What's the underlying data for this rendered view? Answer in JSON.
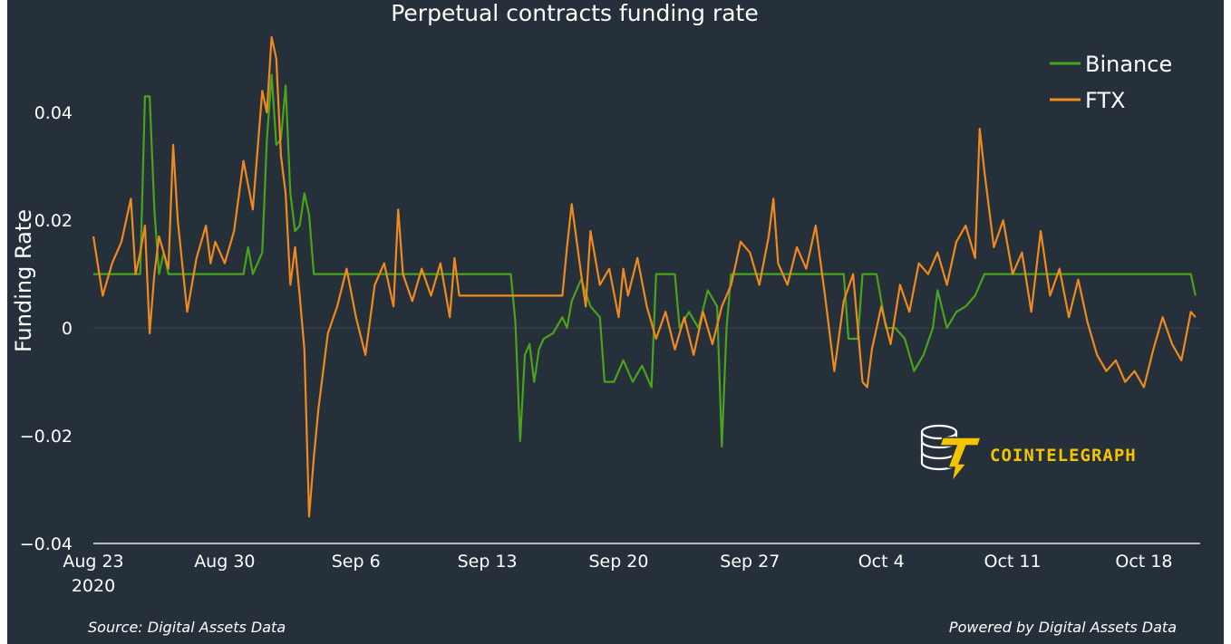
{
  "chart_data": {
    "type": "line",
    "title": "Perpetual contracts funding rate",
    "ylabel": "Funding Rate",
    "xlabel": "",
    "ylim": [
      -0.04,
      0.055
    ],
    "xlim": [
      "2020-08-23",
      "2020-10-21"
    ],
    "yticks": [
      {
        "value": 0.04,
        "label": "0.04"
      },
      {
        "value": 0.02,
        "label": "0.02"
      },
      {
        "value": 0,
        "label": "0"
      },
      {
        "value": -0.02,
        "label": "−0.02"
      },
      {
        "value": -0.04,
        "label": "−0.04"
      }
    ],
    "xticks": [
      {
        "value": "2020-08-23",
        "label": "Aug 23",
        "sublabel": "2020"
      },
      {
        "value": "2020-08-30",
        "label": "Aug 30"
      },
      {
        "value": "2020-09-06",
        "label": "Sep 6"
      },
      {
        "value": "2020-09-13",
        "label": "Sep 13"
      },
      {
        "value": "2020-09-20",
        "label": "Sep 20"
      },
      {
        "value": "2020-09-27",
        "label": "Sep 27"
      },
      {
        "value": "2020-10-04",
        "label": "Oct 4"
      },
      {
        "value": "2020-10-11",
        "label": "Oct 11"
      },
      {
        "value": "2020-10-18",
        "label": "Oct 18"
      }
    ],
    "legend_position": "top-right",
    "grid": "zero line only",
    "series": [
      {
        "name": "Binance",
        "color": "#4aa31c",
        "points": [
          [
            "2020-08-23 00:00",
            0.01
          ],
          [
            "2020-08-25 12:00",
            0.01
          ],
          [
            "2020-08-25 18:00",
            0.043
          ],
          [
            "2020-08-26 00:00",
            0.043
          ],
          [
            "2020-08-26 06:00",
            0.022
          ],
          [
            "2020-08-26 12:00",
            0.01
          ],
          [
            "2020-08-26 18:00",
            0.014
          ],
          [
            "2020-08-27 00:00",
            0.01
          ],
          [
            "2020-08-30 12:00",
            0.01
          ],
          [
            "2020-08-31 00:00",
            0.01
          ],
          [
            "2020-08-31 06:00",
            0.015
          ],
          [
            "2020-08-31 12:00",
            0.01
          ],
          [
            "2020-09-01 00:00",
            0.014
          ],
          [
            "2020-09-01 06:00",
            0.035
          ],
          [
            "2020-09-01 12:00",
            0.047
          ],
          [
            "2020-09-01 18:00",
            0.034
          ],
          [
            "2020-09-02 00:00",
            0.035
          ],
          [
            "2020-09-02 06:00",
            0.045
          ],
          [
            "2020-09-02 12:00",
            0.025
          ],
          [
            "2020-09-02 18:00",
            0.018
          ],
          [
            "2020-09-03 00:00",
            0.019
          ],
          [
            "2020-09-03 06:00",
            0.025
          ],
          [
            "2020-09-03 12:00",
            0.021
          ],
          [
            "2020-09-03 18:00",
            0.01
          ],
          [
            "2020-09-14 06:00",
            0.01
          ],
          [
            "2020-09-14 12:00",
            0.001
          ],
          [
            "2020-09-14 18:00",
            -0.021
          ],
          [
            "2020-09-15 00:00",
            -0.005
          ],
          [
            "2020-09-15 06:00",
            -0.003
          ],
          [
            "2020-09-15 12:00",
            -0.01
          ],
          [
            "2020-09-15 18:00",
            -0.004
          ],
          [
            "2020-09-16 00:00",
            -0.002
          ],
          [
            "2020-09-16 12:00",
            -0.001
          ],
          [
            "2020-09-17 00:00",
            0.002
          ],
          [
            "2020-09-17 06:00",
            0.0
          ],
          [
            "2020-09-17 12:00",
            0.005
          ],
          [
            "2020-09-18 00:00",
            0.009
          ],
          [
            "2020-09-18 12:00",
            0.004
          ],
          [
            "2020-09-19 00:00",
            0.002
          ],
          [
            "2020-09-19 06:00",
            -0.01
          ],
          [
            "2020-09-19 18:00",
            -0.01
          ],
          [
            "2020-09-20 06:00",
            -0.006
          ],
          [
            "2020-09-20 18:00",
            -0.01
          ],
          [
            "2020-09-21 06:00",
            -0.007
          ],
          [
            "2020-09-21 18:00",
            -0.011
          ],
          [
            "2020-09-22 00:00",
            0.01
          ],
          [
            "2020-09-23 00:00",
            0.01
          ],
          [
            "2020-09-23 06:00",
            0.0
          ],
          [
            "2020-09-23 18:00",
            0.003
          ],
          [
            "2020-09-24 06:00",
            0.0
          ],
          [
            "2020-09-24 18:00",
            0.007
          ],
          [
            "2020-09-25 06:00",
            0.004
          ],
          [
            "2020-09-25 12:00",
            -0.022
          ],
          [
            "2020-09-25 18:00",
            0.0
          ],
          [
            "2020-09-26 00:00",
            0.01
          ],
          [
            "2020-10-02 00:00",
            0.01
          ],
          [
            "2020-10-02 06:00",
            -0.002
          ],
          [
            "2020-10-02 18:00",
            -0.002
          ],
          [
            "2020-10-03 00:00",
            0.01
          ],
          [
            "2020-10-03 18:00",
            0.01
          ],
          [
            "2020-10-04 06:00",
            0.0
          ],
          [
            "2020-10-04 18:00",
            0.0
          ],
          [
            "2020-10-05 06:00",
            -0.002
          ],
          [
            "2020-10-05 18:00",
            -0.008
          ],
          [
            "2020-10-06 06:00",
            -0.005
          ],
          [
            "2020-10-06 18:00",
            0.0
          ],
          [
            "2020-10-07 00:00",
            0.007
          ],
          [
            "2020-10-07 12:00",
            0.0
          ],
          [
            "2020-10-08 00:00",
            0.003
          ],
          [
            "2020-10-08 12:00",
            0.004
          ],
          [
            "2020-10-09 00:00",
            0.006
          ],
          [
            "2020-10-09 12:00",
            0.01
          ],
          [
            "2020-10-20 12:00",
            0.01
          ],
          [
            "2020-10-20 18:00",
            0.006
          ]
        ]
      },
      {
        "name": "FTX",
        "color": "#f08a1e",
        "points": [
          [
            "2020-08-23 00:00",
            0.017
          ],
          [
            "2020-08-23 12:00",
            0.006
          ],
          [
            "2020-08-24 00:00",
            0.012
          ],
          [
            "2020-08-24 12:00",
            0.016
          ],
          [
            "2020-08-25 00:00",
            0.024
          ],
          [
            "2020-08-25 06:00",
            0.01
          ],
          [
            "2020-08-25 12:00",
            0.014
          ],
          [
            "2020-08-25 18:00",
            0.019
          ],
          [
            "2020-08-26 00:00",
            -0.001
          ],
          [
            "2020-08-26 06:00",
            0.01
          ],
          [
            "2020-08-26 12:00",
            0.017
          ],
          [
            "2020-08-27 00:00",
            0.011
          ],
          [
            "2020-08-27 06:00",
            0.034
          ],
          [
            "2020-08-27 12:00",
            0.02
          ],
          [
            "2020-08-28 00:00",
            0.003
          ],
          [
            "2020-08-28 12:00",
            0.013
          ],
          [
            "2020-08-29 00:00",
            0.019
          ],
          [
            "2020-08-29 06:00",
            0.012
          ],
          [
            "2020-08-29 12:00",
            0.016
          ],
          [
            "2020-08-30 00:00",
            0.012
          ],
          [
            "2020-08-30 12:00",
            0.018
          ],
          [
            "2020-08-31 00:00",
            0.031
          ],
          [
            "2020-08-31 12:00",
            0.022
          ],
          [
            "2020-09-01 00:00",
            0.044
          ],
          [
            "2020-09-01 06:00",
            0.04
          ],
          [
            "2020-09-01 12:00",
            0.054
          ],
          [
            "2020-09-01 18:00",
            0.05
          ],
          [
            "2020-09-02 00:00",
            0.032
          ],
          [
            "2020-09-02 06:00",
            0.025
          ],
          [
            "2020-09-02 12:00",
            0.008
          ],
          [
            "2020-09-02 18:00",
            0.015
          ],
          [
            "2020-09-03 00:00",
            0.006
          ],
          [
            "2020-09-03 06:00",
            -0.004
          ],
          [
            "2020-09-03 12:00",
            -0.035
          ],
          [
            "2020-09-03 18:00",
            -0.024
          ],
          [
            "2020-09-04 00:00",
            -0.015
          ],
          [
            "2020-09-04 06:00",
            -0.008
          ],
          [
            "2020-09-04 12:00",
            -0.001
          ],
          [
            "2020-09-05 00:00",
            0.004
          ],
          [
            "2020-09-05 12:00",
            0.011
          ],
          [
            "2020-09-06 00:00",
            0.002
          ],
          [
            "2020-09-06 12:00",
            -0.005
          ],
          [
            "2020-09-07 00:00",
            0.008
          ],
          [
            "2020-09-07 12:00",
            0.012
          ],
          [
            "2020-09-08 00:00",
            0.004
          ],
          [
            "2020-09-08 06:00",
            0.022
          ],
          [
            "2020-09-08 12:00",
            0.01
          ],
          [
            "2020-09-09 00:00",
            0.005
          ],
          [
            "2020-09-09 12:00",
            0.011
          ],
          [
            "2020-09-10 00:00",
            0.006
          ],
          [
            "2020-09-10 12:00",
            0.012
          ],
          [
            "2020-09-11 00:00",
            0.002
          ],
          [
            "2020-09-11 06:00",
            0.013
          ],
          [
            "2020-09-11 12:00",
            0.006
          ],
          [
            "2020-09-15 12:00",
            0.006
          ],
          [
            "2020-09-17 00:00",
            0.006
          ],
          [
            "2020-09-17 06:00",
            0.015
          ],
          [
            "2020-09-17 12:00",
            0.023
          ],
          [
            "2020-09-18 00:00",
            0.01
          ],
          [
            "2020-09-18 06:00",
            0.004
          ],
          [
            "2020-09-18 12:00",
            0.018
          ],
          [
            "2020-09-19 00:00",
            0.008
          ],
          [
            "2020-09-19 12:00",
            0.011
          ],
          [
            "2020-09-20 00:00",
            0.002
          ],
          [
            "2020-09-20 06:00",
            0.011
          ],
          [
            "2020-09-20 12:00",
            0.006
          ],
          [
            "2020-09-21 00:00",
            0.013
          ],
          [
            "2020-09-21 12:00",
            0.004
          ],
          [
            "2020-09-22 00:00",
            -0.002
          ],
          [
            "2020-09-22 12:00",
            0.003
          ],
          [
            "2020-09-23 00:00",
            -0.004
          ],
          [
            "2020-09-23 12:00",
            0.002
          ],
          [
            "2020-09-24 00:00",
            -0.005
          ],
          [
            "2020-09-24 12:00",
            0.003
          ],
          [
            "2020-09-25 00:00",
            -0.003
          ],
          [
            "2020-09-25 12:00",
            0.004
          ],
          [
            "2020-09-26 00:00",
            0.008
          ],
          [
            "2020-09-26 12:00",
            0.016
          ],
          [
            "2020-09-27 00:00",
            0.014
          ],
          [
            "2020-09-27 12:00",
            0.008
          ],
          [
            "2020-09-28 00:00",
            0.017
          ],
          [
            "2020-09-28 06:00",
            0.024
          ],
          [
            "2020-09-28 12:00",
            0.012
          ],
          [
            "2020-09-29 00:00",
            0.008
          ],
          [
            "2020-09-29 12:00",
            0.015
          ],
          [
            "2020-09-30 00:00",
            0.011
          ],
          [
            "2020-09-30 12:00",
            0.019
          ],
          [
            "2020-10-01 00:00",
            0.006
          ],
          [
            "2020-10-01 12:00",
            -0.008
          ],
          [
            "2020-10-02 00:00",
            0.005
          ],
          [
            "2020-10-02 12:00",
            0.01
          ],
          [
            "2020-10-03 00:00",
            -0.01
          ],
          [
            "2020-10-03 06:00",
            -0.011
          ],
          [
            "2020-10-03 12:00",
            -0.004
          ],
          [
            "2020-10-04 00:00",
            0.004
          ],
          [
            "2020-10-04 12:00",
            -0.003
          ],
          [
            "2020-10-05 00:00",
            0.008
          ],
          [
            "2020-10-05 12:00",
            0.003
          ],
          [
            "2020-10-06 00:00",
            0.012
          ],
          [
            "2020-10-06 12:00",
            0.01
          ],
          [
            "2020-10-07 00:00",
            0.014
          ],
          [
            "2020-10-07 12:00",
            0.008
          ],
          [
            "2020-10-08 00:00",
            0.016
          ],
          [
            "2020-10-08 12:00",
            0.019
          ],
          [
            "2020-10-09 00:00",
            0.013
          ],
          [
            "2020-10-09 06:00",
            0.037
          ],
          [
            "2020-10-09 12:00",
            0.029
          ],
          [
            "2020-10-10 00:00",
            0.015
          ],
          [
            "2020-10-10 12:00",
            0.02
          ],
          [
            "2020-10-11 00:00",
            0.01
          ],
          [
            "2020-10-11 12:00",
            0.014
          ],
          [
            "2020-10-12 00:00",
            0.003
          ],
          [
            "2020-10-12 12:00",
            0.018
          ],
          [
            "2020-10-13 00:00",
            0.006
          ],
          [
            "2020-10-13 12:00",
            0.011
          ],
          [
            "2020-10-14 00:00",
            0.002
          ],
          [
            "2020-10-14 12:00",
            0.009
          ],
          [
            "2020-10-15 00:00",
            0.001
          ],
          [
            "2020-10-15 12:00",
            -0.005
          ],
          [
            "2020-10-16 00:00",
            -0.008
          ],
          [
            "2020-10-16 12:00",
            -0.006
          ],
          [
            "2020-10-17 00:00",
            -0.01
          ],
          [
            "2020-10-17 12:00",
            -0.008
          ],
          [
            "2020-10-18 00:00",
            -0.011
          ],
          [
            "2020-10-18 12:00",
            -0.004
          ],
          [
            "2020-10-19 00:00",
            0.002
          ],
          [
            "2020-10-19 12:00",
            -0.003
          ],
          [
            "2020-10-20 00:00",
            -0.006
          ],
          [
            "2020-10-20 12:00",
            0.003
          ],
          [
            "2020-10-20 18:00",
            0.002
          ]
        ]
      }
    ]
  },
  "footer": {
    "source": "Source: Digital Assets Data",
    "powered": "Powered by Digital Assets Data"
  },
  "logo": {
    "text": "COINTELEGRAPH",
    "color": "#f5c400"
  }
}
